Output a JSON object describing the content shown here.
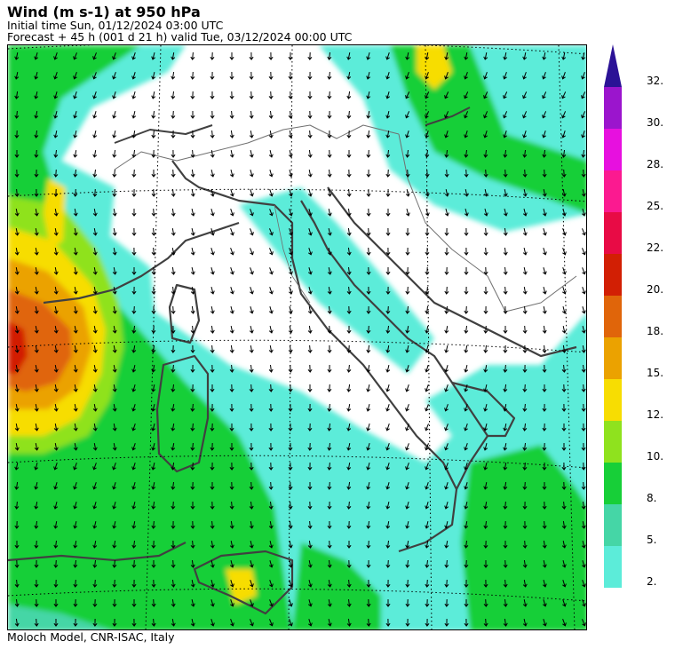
{
  "header": {
    "title": "Wind (m s-1) at 950 hPa",
    "initial_time": "Initial time  Sun, 01/12/2024  03:00 UTC",
    "forecast": "Forecast  +  45 h  (001 d 21 h)  valid Tue, 03/12/2024 00:00 UTC"
  },
  "footer": {
    "credit": "Moloch Model, CNR-ISAC, Italy"
  },
  "colorbar": {
    "levels": [
      {
        "label": "2.",
        "color": "#5cecd9"
      },
      {
        "label": "5.",
        "color": "#45d6a6"
      },
      {
        "label": "8.",
        "color": "#17cf38"
      },
      {
        "label": "10.",
        "color": "#8fe21e"
      },
      {
        "label": "12.",
        "color": "#f7dd02"
      },
      {
        "label": "15.",
        "color": "#eba200"
      },
      {
        "label": "18.",
        "color": "#e0650a"
      },
      {
        "label": "20.",
        "color": "#d21f04"
      },
      {
        "label": "22.",
        "color": "#e80b45"
      },
      {
        "label": "25.",
        "color": "#fb1a90"
      },
      {
        "label": "28.",
        "color": "#e710df"
      },
      {
        "label": "30.",
        "color": "#9b15cd"
      },
      {
        "label": "32.",
        "color": "#3b14a8"
      }
    ],
    "extend_arrow_color": "#2b1296"
  },
  "map": {
    "wind_dominant_direction": "from north to north-west",
    "coastline_color": "#404040",
    "border_color": "#707070"
  }
}
